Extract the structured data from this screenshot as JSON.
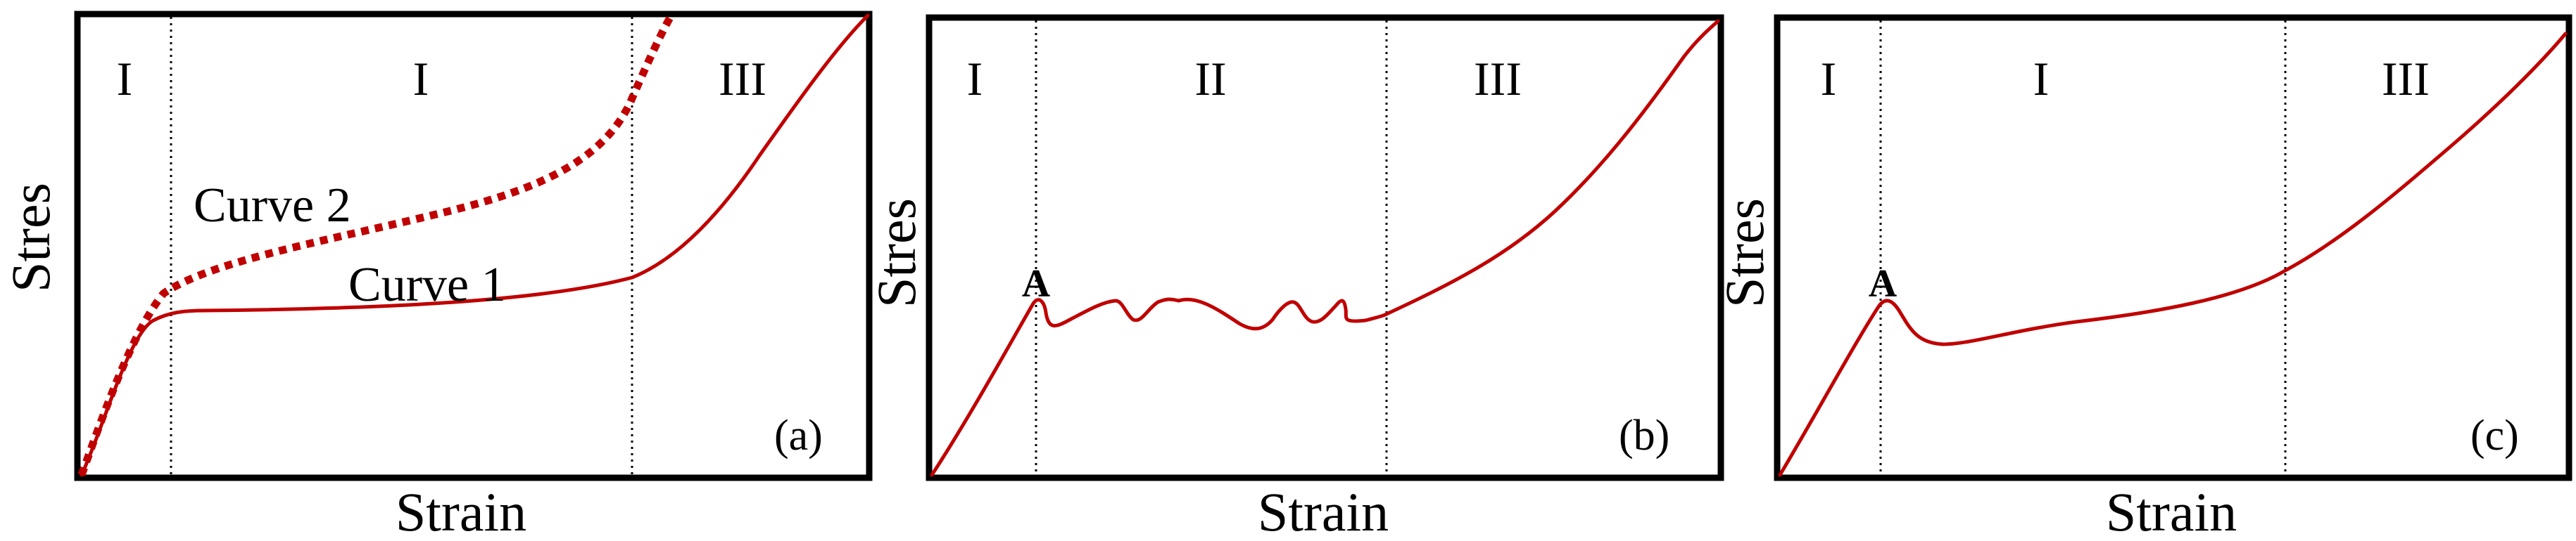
{
  "panels": [
    {
      "tag": "(a)",
      "xlabel": "Strain",
      "ylabel": "Stres",
      "regions": [
        "I",
        "I",
        "III"
      ],
      "curve_labels": [
        "Curve 2",
        "Curve 1"
      ],
      "curve_color": "#c00000"
    },
    {
      "tag": "(b)",
      "xlabel": "Strain",
      "ylabel": "Stres",
      "regions": [
        "I",
        "II",
        "III"
      ],
      "point_label": "A",
      "curve_color": "#c00000"
    },
    {
      "tag": "(c)",
      "xlabel": "Strain",
      "ylabel": "Stres",
      "regions": [
        "I",
        "I",
        "III"
      ],
      "point_label": "A",
      "curve_color": "#c00000"
    }
  ]
}
